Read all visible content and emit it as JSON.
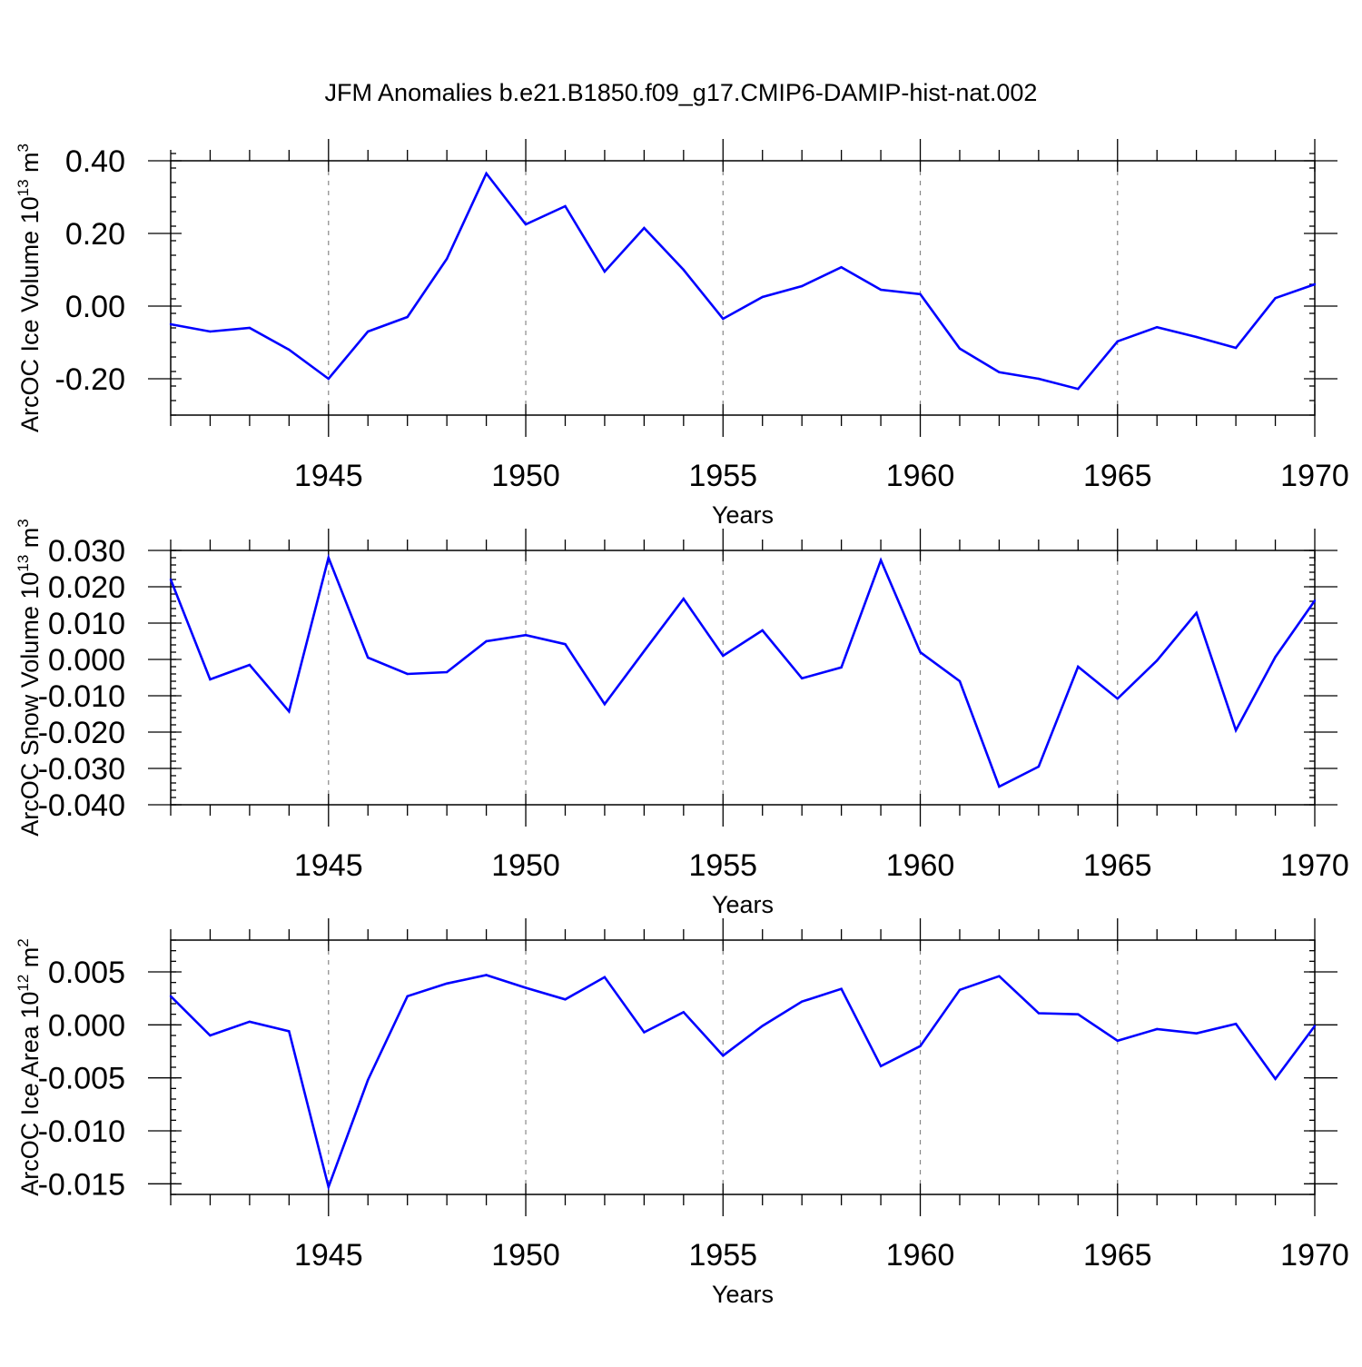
{
  "title": "JFM Anomalies b.e21.B1850.f09_g17.CMIP6-DAMIP-hist-nat.002",
  "colors": {
    "line": "#0000ff",
    "axis": "#000000",
    "grid": "#888888",
    "background": "#ffffff"
  },
  "chart_data": [
    {
      "type": "line",
      "ylabel": {
        "main": "ArcOC Ice Volume 10",
        "exp": "13",
        "unit": " m",
        "unit_exp": "3"
      },
      "xlabel": "Years",
      "xlim": [
        1941,
        1970
      ],
      "ylim": [
        -0.3,
        0.4
      ],
      "x_ticks": [
        1945,
        1950,
        1955,
        1960,
        1965,
        1970
      ],
      "x_tick_labels": [
        "1945",
        "1950",
        "1955",
        "1960",
        "1965",
        "1970"
      ],
      "y_ticks": [
        -0.2,
        0.0,
        0.2,
        0.4
      ],
      "y_tick_labels": [
        "-0.20",
        "0.00",
        "0.20",
        "0.40"
      ],
      "y_minor_step": 0.04,
      "grid": "vertical-dashed",
      "series": [
        {
          "name": "ArcOC Ice Volume",
          "x": [
            1941,
            1942,
            1943,
            1944,
            1945,
            1946,
            1947,
            1948,
            1949,
            1950,
            1951,
            1952,
            1953,
            1954,
            1955,
            1956,
            1957,
            1958,
            1959,
            1960,
            1961,
            1962,
            1963,
            1964,
            1965,
            1966,
            1967,
            1968,
            1969,
            1970
          ],
          "values": [
            -0.05,
            -0.07,
            -0.06,
            -0.12,
            -0.2,
            -0.07,
            -0.03,
            0.13,
            0.365,
            0.225,
            0.275,
            0.095,
            0.215,
            0.1,
            -0.035,
            0.025,
            0.055,
            0.107,
            0.045,
            0.033,
            -0.117,
            -0.182,
            -0.2,
            -0.228,
            -0.097,
            -0.058,
            -0.085,
            -0.115,
            0.022,
            0.06
          ]
        }
      ]
    },
    {
      "type": "line",
      "ylabel": {
        "main": "ArcOC Snow Volume 10",
        "exp": "13",
        "unit": " m",
        "unit_exp": "3"
      },
      "xlabel": "Years",
      "xlim": [
        1941,
        1970
      ],
      "ylim": [
        -0.04,
        0.03
      ],
      "x_ticks": [
        1945,
        1950,
        1955,
        1960,
        1965,
        1970
      ],
      "x_tick_labels": [
        "1945",
        "1950",
        "1955",
        "1960",
        "1965",
        "1970"
      ],
      "y_ticks": [
        -0.04,
        -0.03,
        -0.02,
        -0.01,
        0.0,
        0.01,
        0.02,
        0.03
      ],
      "y_tick_labels": [
        "-0.040",
        "-0.030",
        "-0.020",
        "-0.010",
        "0.000",
        "0.010",
        "0.020",
        "0.030"
      ],
      "y_minor_step": 0.002,
      "grid": "vertical-dashed",
      "series": [
        {
          "name": "ArcOC Snow Volume",
          "x": [
            1941,
            1942,
            1943,
            1944,
            1945,
            1946,
            1947,
            1948,
            1949,
            1950,
            1951,
            1952,
            1953,
            1954,
            1955,
            1956,
            1957,
            1958,
            1959,
            1960,
            1961,
            1962,
            1963,
            1964,
            1965,
            1966,
            1967,
            1968,
            1969,
            1970
          ],
          "values": [
            0.022,
            -0.0055,
            -0.0015,
            -0.0143,
            0.028,
            0.0005,
            -0.004,
            -0.0035,
            0.005,
            0.0067,
            0.0042,
            -0.0123,
            0.0023,
            0.0167,
            0.001,
            0.008,
            -0.0052,
            -0.0022,
            0.0273,
            0.002,
            -0.006,
            -0.035,
            -0.0295,
            -0.002,
            -0.0108,
            -0.0003,
            0.0128,
            -0.0195,
            0.0007,
            0.0162
          ]
        }
      ]
    },
    {
      "type": "line",
      "ylabel": {
        "main": "ArcOC Ice Area 10",
        "exp": "12",
        "unit": " m",
        "unit_exp": "2"
      },
      "xlabel": "Years",
      "xlim": [
        1941,
        1970
      ],
      "ylim": [
        -0.016,
        0.008
      ],
      "x_ticks": [
        1945,
        1950,
        1955,
        1960,
        1965,
        1970
      ],
      "x_tick_labels": [
        "1945",
        "1950",
        "1955",
        "1960",
        "1965",
        "1970"
      ],
      "y_ticks": [
        -0.015,
        -0.01,
        -0.005,
        0.0,
        0.005
      ],
      "y_tick_labels": [
        "-0.015",
        "-0.010",
        "-0.005",
        "0.000",
        "0.005"
      ],
      "y_minor_step": 0.001,
      "grid": "vertical-dashed",
      "series": [
        {
          "name": "ArcOC Ice Area",
          "x": [
            1941,
            1942,
            1943,
            1944,
            1945,
            1946,
            1947,
            1948,
            1949,
            1950,
            1951,
            1952,
            1953,
            1954,
            1955,
            1956,
            1957,
            1958,
            1959,
            1960,
            1961,
            1962,
            1963,
            1964,
            1965,
            1966,
            1967,
            1968,
            1969,
            1970
          ],
          "values": [
            0.0027,
            -0.001,
            0.0003,
            -0.0006,
            -0.0153,
            -0.0052,
            0.0027,
            0.0039,
            0.0047,
            0.0035,
            0.0024,
            0.0045,
            -0.0007,
            0.0012,
            -0.0029,
            -0.0001,
            0.0022,
            0.0034,
            -0.0039,
            -0.002,
            0.0033,
            0.0046,
            0.0011,
            0.001,
            -0.0015,
            -0.0004,
            -0.0008,
            0.0001,
            -0.0051,
            -0.0001
          ]
        }
      ]
    }
  ]
}
